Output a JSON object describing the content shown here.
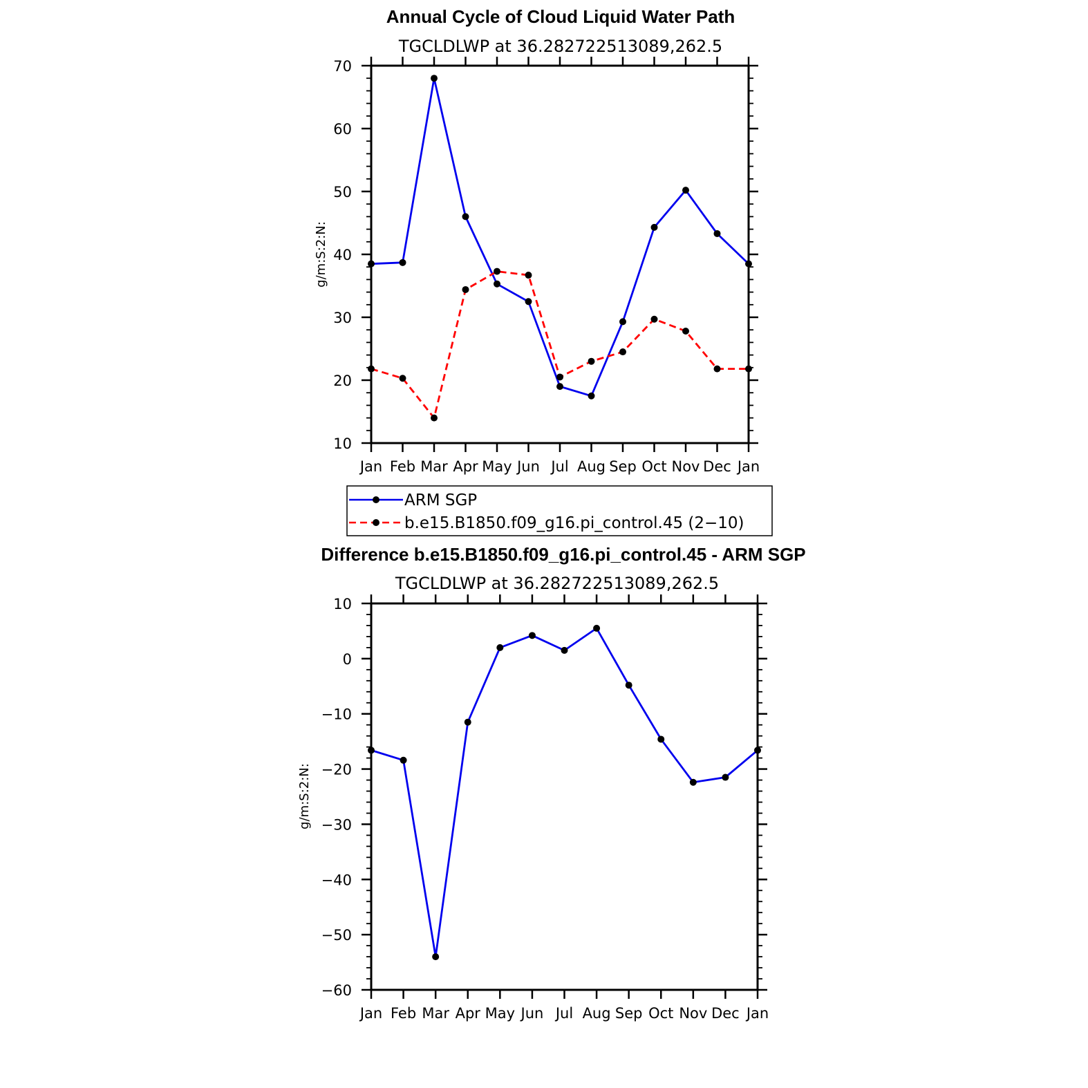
{
  "chart_data": [
    {
      "type": "line",
      "title": "Annual Cycle of Cloud Liquid Water Path",
      "subtitle": "TGCLDLWP  at  36.282722513089,262.5",
      "xlabel": "",
      "ylabel": "g/m:S:2:N:",
      "categories": [
        "Jan",
        "Feb",
        "Mar",
        "Apr",
        "May",
        "Jun",
        "Jul",
        "Aug",
        "Sep",
        "Oct",
        "Nov",
        "Dec",
        "Jan"
      ],
      "ylim": [
        10,
        70
      ],
      "yticks": [
        "10",
        "20",
        "30",
        "40",
        "50",
        "60",
        "70"
      ],
      "series": [
        {
          "name": "ARM  SGP",
          "color": "#0000ee",
          "dash": "solid",
          "values": [
            38.5,
            38.7,
            68.0,
            46.0,
            35.3,
            32.5,
            19.0,
            17.5,
            29.3,
            44.3,
            50.2,
            43.3,
            38.5
          ]
        },
        {
          "name": "b.e15.B1850.f09_g16.pi_control.45  (2−10)",
          "color": "#ff0000",
          "dash": "dashed",
          "values": [
            21.8,
            20.3,
            14.0,
            34.4,
            37.3,
            36.7,
            20.5,
            23.0,
            24.5,
            29.7,
            27.8,
            21.8,
            21.8
          ]
        }
      ],
      "legend": [
        "ARM  SGP",
        "b.e15.B1850.f09_g16.pi_control.45  (2−10)"
      ]
    },
    {
      "type": "line",
      "title": "Difference b.e15.B1850.f09_g16.pi_control.45 - ARM SGP",
      "subtitle": "TGCLDLWP  at  36.282722513089,262.5",
      "xlabel": "",
      "ylabel": "g/m:S:2:N:",
      "categories": [
        "Jan",
        "Feb",
        "Mar",
        "Apr",
        "May",
        "Jun",
        "Jul",
        "Aug",
        "Sep",
        "Oct",
        "Nov",
        "Dec",
        "Jan"
      ],
      "ylim": [
        -60,
        10
      ],
      "yticks": [
        "−60",
        "−50",
        "−40",
        "−30",
        "−20",
        "−10",
        "0",
        "10"
      ],
      "series": [
        {
          "name": "Difference",
          "color": "#0000ee",
          "dash": "solid",
          "values": [
            -16.6,
            -18.4,
            -54.0,
            -11.5,
            2.0,
            4.2,
            1.5,
            5.5,
            -4.8,
            -14.6,
            -22.4,
            -21.5,
            -16.6
          ]
        }
      ]
    }
  ]
}
